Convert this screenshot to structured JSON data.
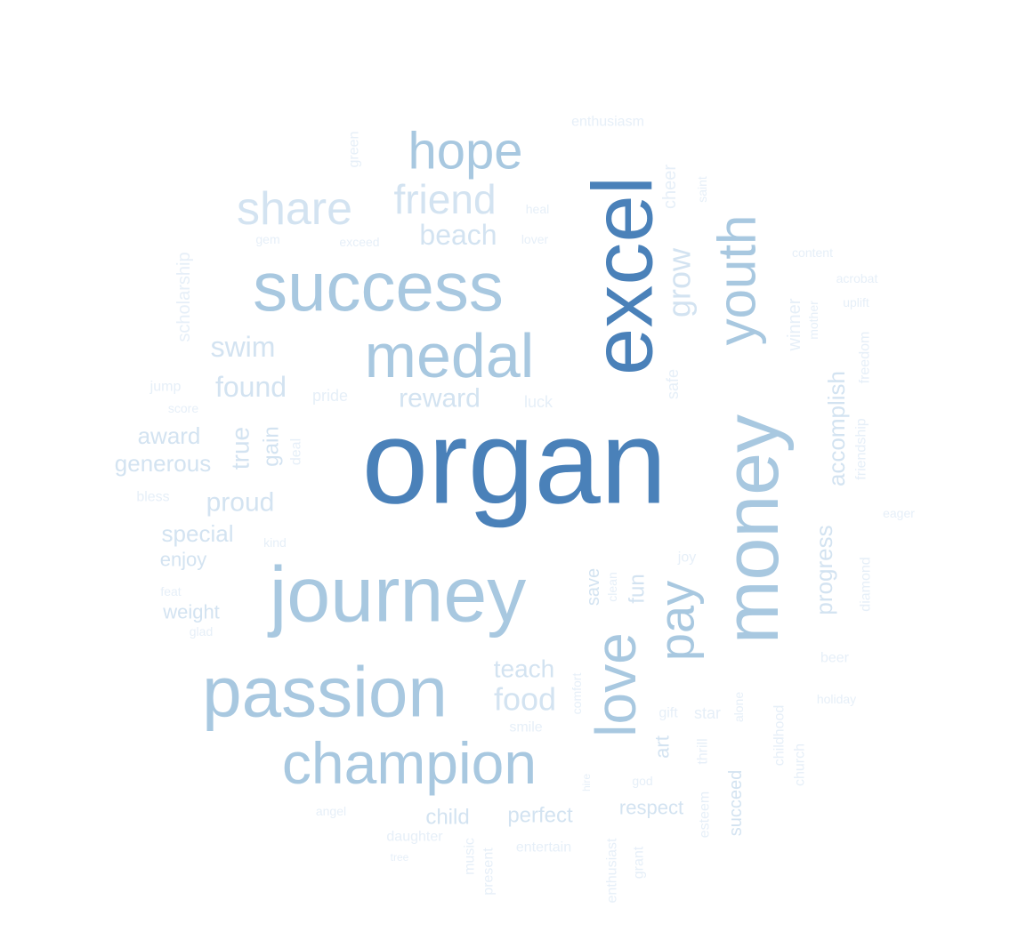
{
  "colors": {
    "background": "#ffffff",
    "dark": "#4a81b9",
    "mid": "#a8c8e0",
    "light": "#d3e3f1",
    "faint": "#e6eff8"
  },
  "words": [
    {
      "text": "organ",
      "tone": "dark"
    },
    {
      "text": "excel",
      "tone": "dark"
    },
    {
      "text": "journey",
      "tone": "mid"
    },
    {
      "text": "money",
      "tone": "mid"
    },
    {
      "text": "passion",
      "tone": "mid"
    },
    {
      "text": "success",
      "tone": "mid"
    },
    {
      "text": "champion",
      "tone": "mid"
    },
    {
      "text": "medal",
      "tone": "mid"
    },
    {
      "text": "love",
      "tone": "mid"
    },
    {
      "text": "youth",
      "tone": "mid"
    },
    {
      "text": "pay",
      "tone": "mid"
    },
    {
      "text": "hope",
      "tone": "mid"
    },
    {
      "text": "share",
      "tone": "light"
    },
    {
      "text": "friend",
      "tone": "light"
    },
    {
      "text": "grow",
      "tone": "light"
    },
    {
      "text": "beach",
      "tone": "light"
    },
    {
      "text": "food",
      "tone": "light"
    },
    {
      "text": "reward",
      "tone": "light"
    },
    {
      "text": "swim",
      "tone": "light"
    },
    {
      "text": "found",
      "tone": "light"
    },
    {
      "text": "accomplish",
      "tone": "light"
    },
    {
      "text": "progress",
      "tone": "light"
    },
    {
      "text": "teach",
      "tone": "light"
    },
    {
      "text": "proud",
      "tone": "light"
    },
    {
      "text": "true",
      "tone": "light"
    },
    {
      "text": "award",
      "tone": "light"
    },
    {
      "text": "special",
      "tone": "light"
    },
    {
      "text": "generous",
      "tone": "light"
    },
    {
      "text": "fun",
      "tone": "light"
    },
    {
      "text": "art",
      "tone": "light"
    },
    {
      "text": "gain",
      "tone": "light"
    },
    {
      "text": "perfect",
      "tone": "light"
    },
    {
      "text": "child",
      "tone": "light"
    },
    {
      "text": "respect",
      "tone": "light"
    },
    {
      "text": "succeed",
      "tone": "light"
    },
    {
      "text": "weight",
      "tone": "light"
    },
    {
      "text": "enjoy",
      "tone": "light"
    },
    {
      "text": "save",
      "tone": "light"
    },
    {
      "text": "scholarship",
      "tone": "faint"
    },
    {
      "text": "winner",
      "tone": "faint"
    },
    {
      "text": "cheer",
      "tone": "faint"
    },
    {
      "text": "safe",
      "tone": "faint"
    },
    {
      "text": "pride",
      "tone": "faint"
    },
    {
      "text": "luck",
      "tone": "faint"
    },
    {
      "text": "star",
      "tone": "faint"
    },
    {
      "text": "gift",
      "tone": "faint"
    },
    {
      "text": "smile",
      "tone": "faint"
    },
    {
      "text": "deal",
      "tone": "faint"
    },
    {
      "text": "clean",
      "tone": "faint"
    },
    {
      "text": "comfort",
      "tone": "faint"
    },
    {
      "text": "thrill",
      "tone": "faint"
    },
    {
      "text": "childhood",
      "tone": "faint"
    },
    {
      "text": "church",
      "tone": "faint"
    },
    {
      "text": "esteem",
      "tone": "faint"
    },
    {
      "text": "grant",
      "tone": "faint"
    },
    {
      "text": "music",
      "tone": "faint"
    },
    {
      "text": "present",
      "tone": "faint"
    },
    {
      "text": "enthusiast",
      "tone": "faint"
    },
    {
      "text": "daughter",
      "tone": "faint"
    },
    {
      "text": "entertain",
      "tone": "faint"
    },
    {
      "text": "god",
      "tone": "faint"
    },
    {
      "text": "hire",
      "tone": "faint"
    },
    {
      "text": "alone",
      "tone": "faint"
    },
    {
      "text": "mother",
      "tone": "faint"
    },
    {
      "text": "freedom",
      "tone": "faint"
    },
    {
      "text": "friendship",
      "tone": "faint"
    },
    {
      "text": "diamond",
      "tone": "faint"
    },
    {
      "text": "jump",
      "tone": "faint"
    },
    {
      "text": "score",
      "tone": "faint"
    },
    {
      "text": "bless",
      "tone": "faint"
    },
    {
      "text": "kind",
      "tone": "faint"
    },
    {
      "text": "feat",
      "tone": "faint"
    },
    {
      "text": "glad",
      "tone": "faint"
    },
    {
      "text": "green",
      "tone": "faint"
    },
    {
      "text": "enthusiasm",
      "tone": "faint"
    },
    {
      "text": "heal",
      "tone": "faint"
    },
    {
      "text": "gem",
      "tone": "faint"
    },
    {
      "text": "exceed",
      "tone": "faint"
    },
    {
      "text": "lover",
      "tone": "faint"
    },
    {
      "text": "saint",
      "tone": "faint"
    },
    {
      "text": "content",
      "tone": "faint"
    },
    {
      "text": "acrobat",
      "tone": "faint"
    },
    {
      "text": "uplift",
      "tone": "faint"
    },
    {
      "text": "eager",
      "tone": "faint"
    },
    {
      "text": "joy",
      "tone": "faint"
    },
    {
      "text": "beer",
      "tone": "faint"
    },
    {
      "text": "holiday",
      "tone": "faint"
    },
    {
      "text": "angel",
      "tone": "faint"
    },
    {
      "text": "tree",
      "tone": "faint"
    }
  ]
}
